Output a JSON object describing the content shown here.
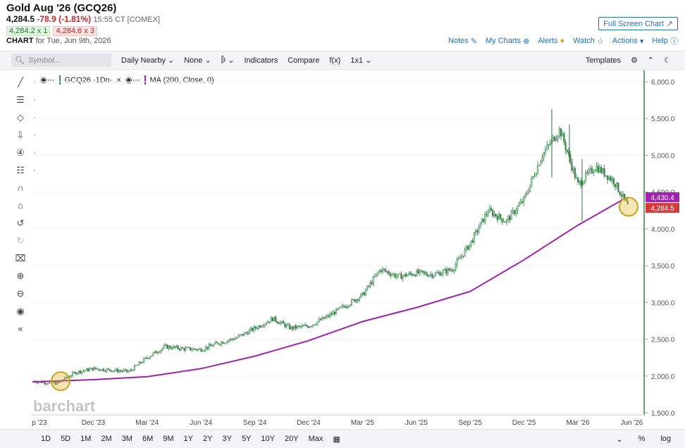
{
  "header": {
    "title": "Gold Aug '26 (GCQ26)",
    "last": "4,284.5",
    "change": "-78.9 (-1.81%)",
    "time": "15:55 CT [COMEX]",
    "bid": "4,284.2 x 1",
    "ask": "4,284.6 x 3",
    "chart_label": "CHART",
    "chart_date": "for Tue, Jun 9th, 2026",
    "fullscreen_label": "Full Screen Chart",
    "links": {
      "notes": "Notes",
      "mycharts": "My Charts",
      "alerts": "Alerts",
      "watch": "Watch",
      "actions": "Actions",
      "help": "Help"
    }
  },
  "toolbar": {
    "symbol_placeholder": "Symbol...",
    "period": "Daily Nearby",
    "overlay": "None",
    "indicators": "Indicators",
    "compare": "Compare",
    "fx": "f(x)",
    "layout": "1x1",
    "templates": "Templates"
  },
  "legend": {
    "symbol": "GCQ26 ·1Dn·",
    "study": "MA (200, Close, 0)"
  },
  "brand": "barchart",
  "price_tags": {
    "ma": "4,430.4",
    "last": "4,284.5"
  },
  "bottom": {
    "ranges": [
      "1D",
      "5D",
      "1M",
      "2M",
      "3M",
      "6M",
      "9M",
      "1Y",
      "2Y",
      "3Y",
      "5Y",
      "10Y",
      "20Y",
      "Max"
    ],
    "percent": "%",
    "log": "log"
  },
  "colors": {
    "candles": "#2f8a45",
    "ma": "#a020b0",
    "last_tag": "#d43b3b",
    "ma_tag": "#a020b0",
    "highlight": "#d4b02a"
  },
  "chart_data": {
    "type": "line",
    "title": "Gold Aug '26 (GCQ26)",
    "x_tick_labels": [
      "p '23",
      "Dec '23",
      "Mar '24",
      "Jun '24",
      "Sep '24",
      "Dec '24",
      "Mar '25",
      "Jun '25",
      "Sep '25",
      "Dec '25",
      "Mar '26",
      "Jun '26"
    ],
    "y_tick_labels": [
      "1,500.0",
      "2,000.0",
      "2,500.0",
      "3,000.0",
      "3,500.0",
      "4,000.0",
      "4,500.0",
      "5,000.0",
      "5,500.0",
      "6,000.0"
    ],
    "ylim": [
      1500,
      6000
    ],
    "series": [
      {
        "name": "GCQ26",
        "x": [
          "Sep '23",
          "Oct '23",
          "Nov '23",
          "Dec '23",
          "Jan '24",
          "Feb '24",
          "Mar '24",
          "Apr '24",
          "May '24",
          "Jun '24",
          "Jul '24",
          "Aug '24",
          "Sep '24",
          "Oct '24",
          "Nov '24",
          "Dec '24",
          "Jan '25",
          "Feb '25",
          "Mar '25",
          "Apr '25",
          "May '25",
          "Jun '25",
          "Jul '25",
          "Aug '25",
          "Sep '25",
          "Oct '25",
          "Nov '25",
          "Dec '25",
          "Jan '26",
          "Feb '26",
          "Mar '26",
          "Apr '26",
          "May '26",
          "Jun '26"
        ],
        "values": [
          1930,
          1900,
          2050,
          2100,
          2080,
          2060,
          2250,
          2400,
          2370,
          2360,
          2450,
          2520,
          2650,
          2780,
          2650,
          2680,
          2800,
          2950,
          3100,
          3450,
          3350,
          3400,
          3380,
          3450,
          3800,
          4250,
          4100,
          4400,
          5000,
          5350,
          4600,
          4850,
          4650,
          4284.5
        ]
      },
      {
        "name": "MA (200, Close, 0)",
        "x": [
          "Sep '23",
          "Dec '23",
          "Mar '24",
          "Jun '24",
          "Sep '24",
          "Dec '24",
          "Mar '25",
          "Jun '25",
          "Sep '25",
          "Dec '25",
          "Mar '26",
          "Jun '26"
        ],
        "values": [
          1920,
          1950,
          1990,
          2100,
          2270,
          2480,
          2740,
          2930,
          3150,
          3580,
          4050,
          4430.4
        ]
      }
    ]
  }
}
